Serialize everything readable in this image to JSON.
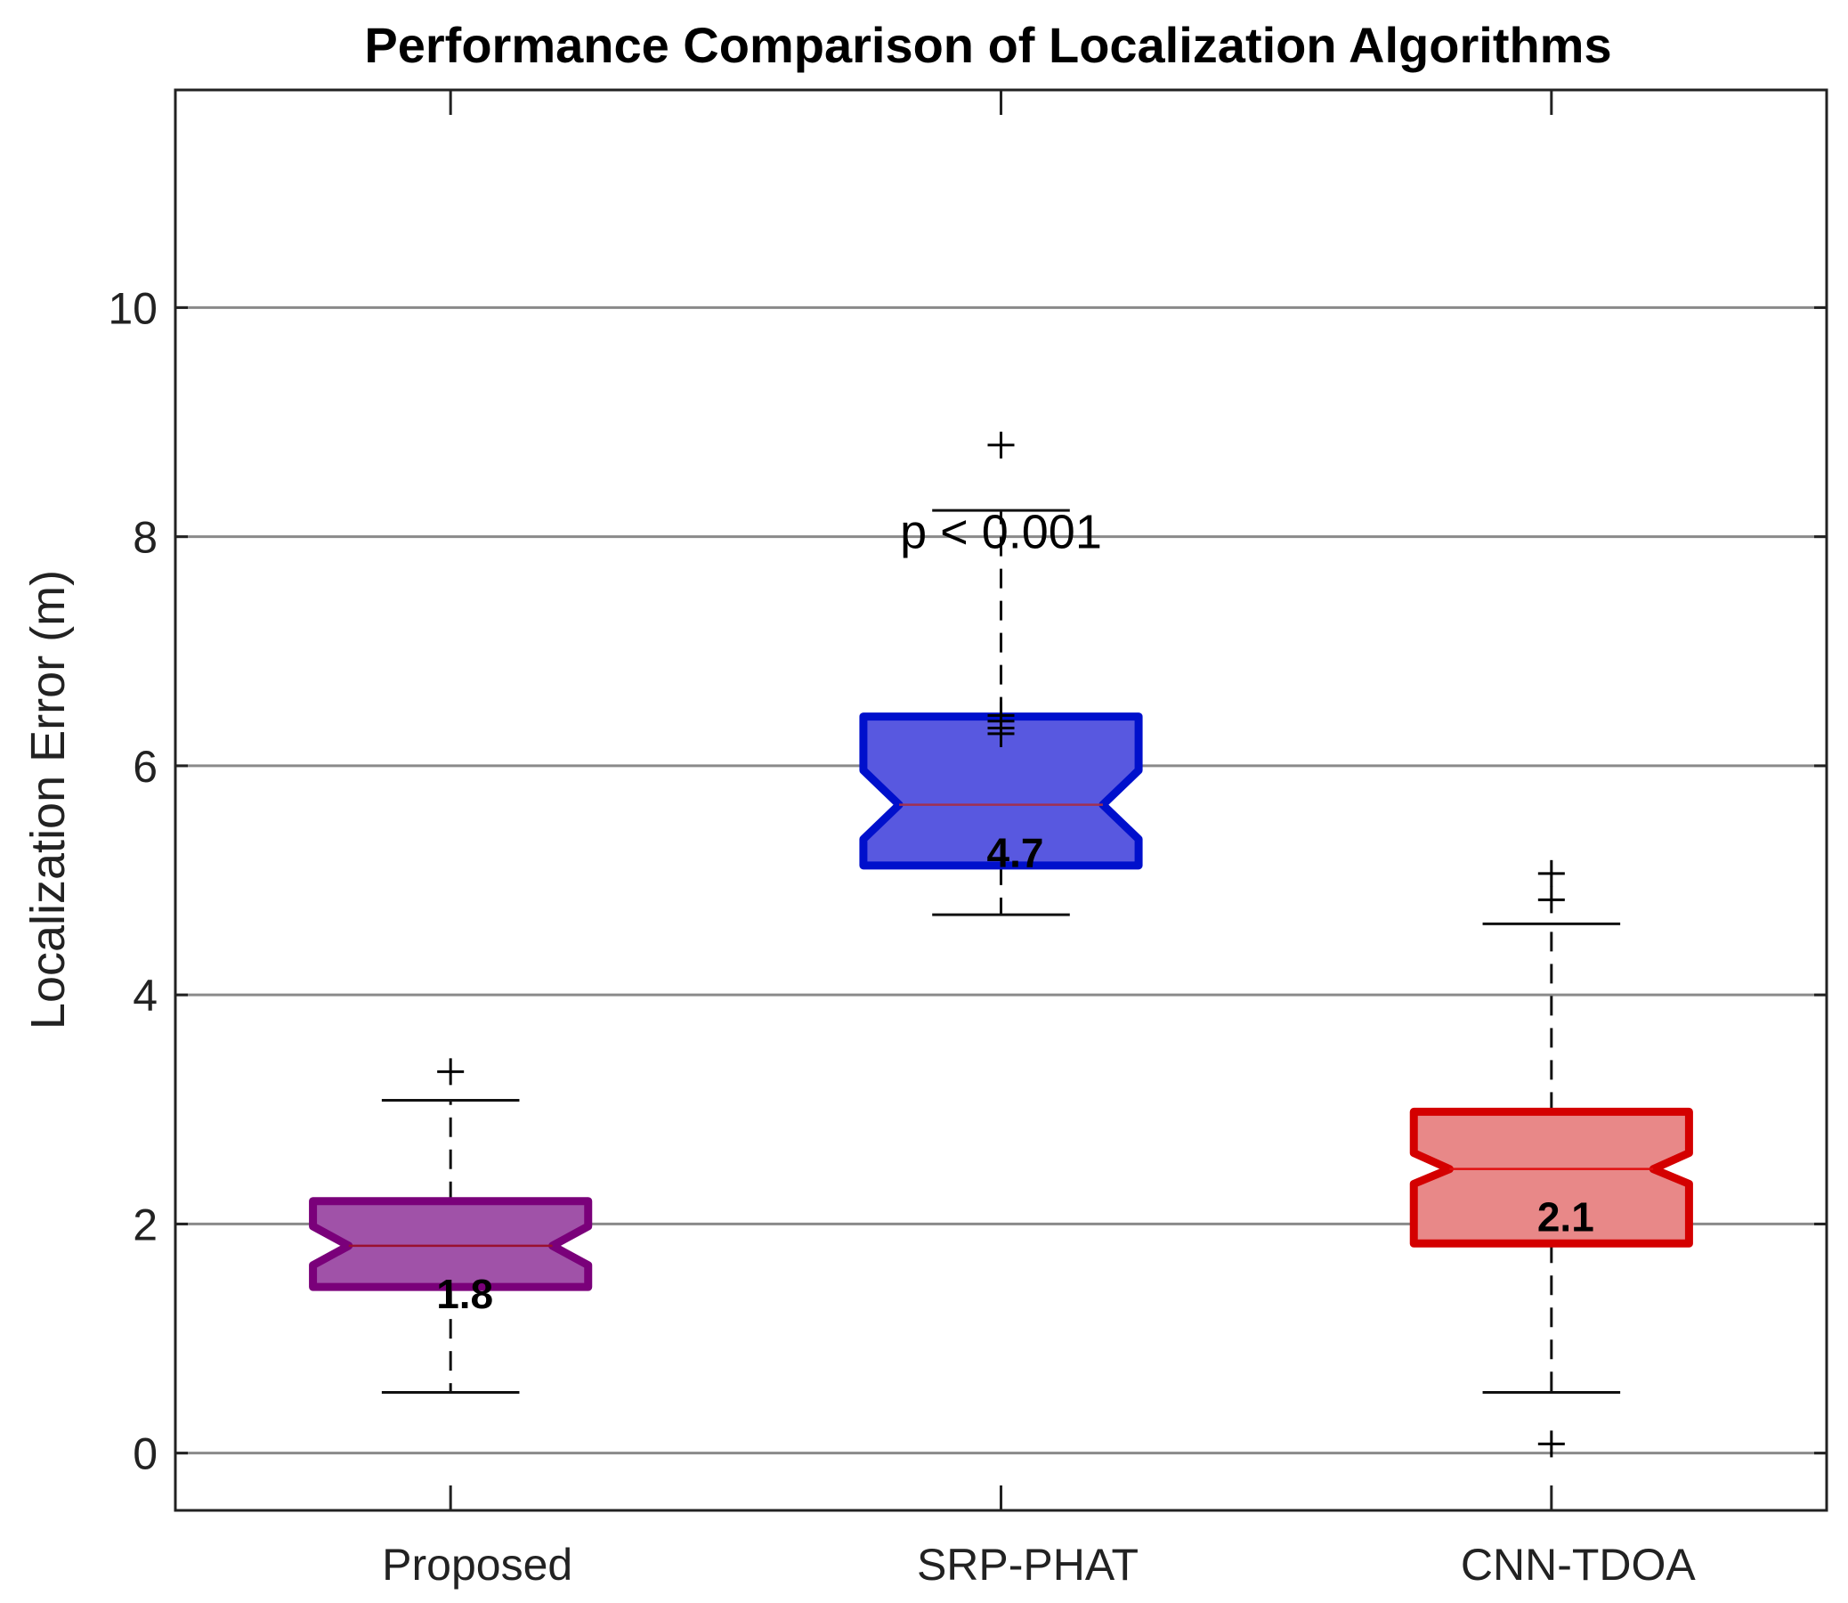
{
  "chart_data": {
    "type": "boxplot",
    "title": "Performance Comparison of Localization Algorithms",
    "xlabel": "",
    "ylabel": "Localization Error (m)",
    "ylim": [
      -0.5,
      11.9
    ],
    "yticks": [
      0,
      2,
      4,
      6,
      8,
      10
    ],
    "grid": "y",
    "categories": [
      "Proposed",
      "SRP-PHAT",
      "CNN-TDOA"
    ],
    "boxes": [
      {
        "name": "Proposed",
        "whisker_low": 0.53,
        "q1": 1.45,
        "median": 1.81,
        "q3": 2.2,
        "whisker_high": 3.08,
        "outliers": [
          3.33
        ],
        "notch": [
          1.64,
          1.98
        ],
        "label": "1.8",
        "fill": "#a052a8",
        "edge": "#7a007a",
        "median_color": "#9a1030"
      },
      {
        "name": "SRP-PHAT",
        "whisker_low": 4.7,
        "q1": 5.13,
        "median": 5.66,
        "q3": 6.43,
        "whisker_high": 8.23,
        "outliers": [
          8.8,
          6.44,
          6.39,
          6.33,
          6.28
        ],
        "notch": [
          5.36,
          5.96
        ],
        "label": "4.7",
        "fill": "#5858e0",
        "edge": "#0010cc",
        "median_color": "#a03050"
      },
      {
        "name": "CNN-TDOA",
        "whisker_low": 0.53,
        "q1": 1.83,
        "median": 2.48,
        "q3": 2.98,
        "whisker_high": 4.62,
        "outliers": [
          5.06,
          4.83,
          0.08
        ],
        "notch": [
          2.35,
          2.62
        ],
        "label": "2.1",
        "fill": "#e88888",
        "edge": "#d40000",
        "median_color": "#e01010"
      }
    ],
    "annotations": [
      {
        "text": "p < 0.001",
        "category": "SRP-PHAT",
        "y": 7.9
      }
    ]
  }
}
